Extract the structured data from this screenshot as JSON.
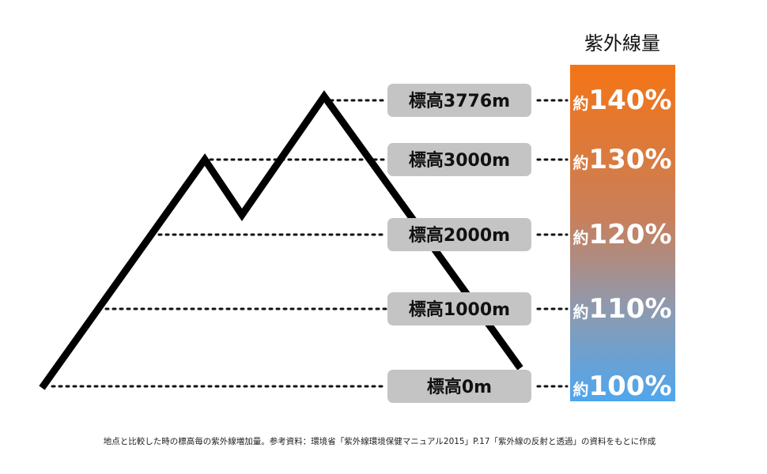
{
  "bar_title": "紫外線量",
  "levels": [
    {
      "elevation_label": "標高3776m",
      "uv_prefix": "約",
      "uv_value": "140%"
    },
    {
      "elevation_label": "標高3000m",
      "uv_prefix": "約",
      "uv_value": "130%"
    },
    {
      "elevation_label": "標高2000m",
      "uv_prefix": "約",
      "uv_value": "120%"
    },
    {
      "elevation_label": "標高1000m",
      "uv_prefix": "約",
      "uv_value": "110%"
    },
    {
      "elevation_label": "標高0m",
      "uv_prefix": "約",
      "uv_value": "100%"
    }
  ],
  "footnote": "地点と比較した時の標高毎の紫外線増加量。参考資料：環境省「紫外線環境保健マニュアル2015」P.17「紫外線の反射と透過」の資料をもとに作成",
  "colors": {
    "gradient_top": "#f47415",
    "gradient_mid": "#c97f5a",
    "gradient_low": "#8f9aae",
    "gradient_bottom": "#4fa6ee",
    "label_box": "#c4c4c4",
    "mountain": "#000000"
  }
}
